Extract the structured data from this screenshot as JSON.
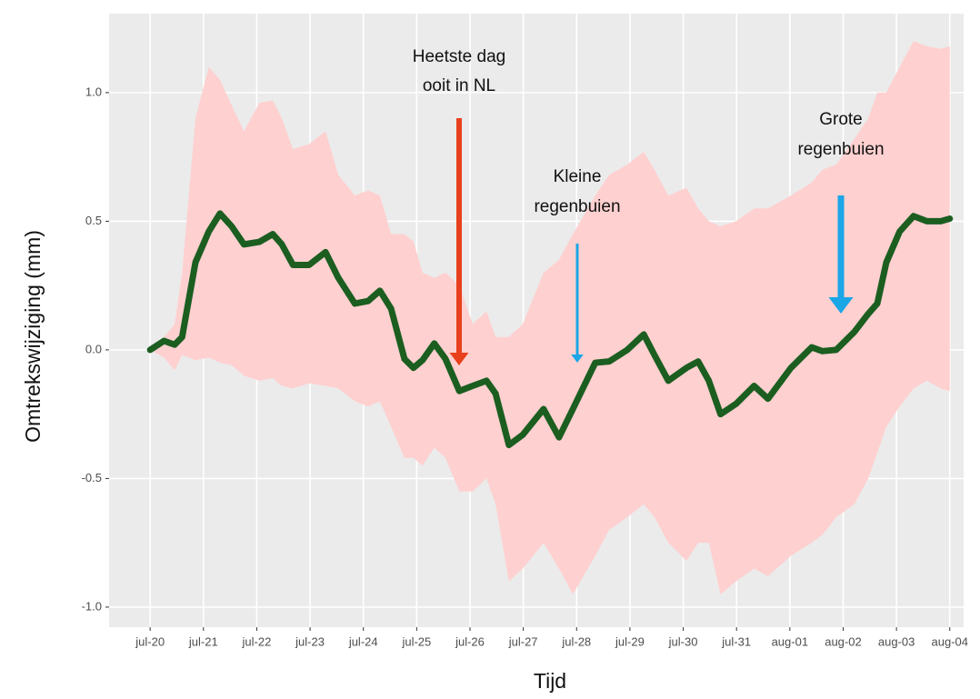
{
  "chart_data": {
    "type": "line",
    "x_label": "Tijd",
    "y_label": "Omtrekswijziging (mm)",
    "x": [
      0,
      0.26,
      0.46,
      0.6,
      0.85,
      1.1,
      1.31,
      1.53,
      1.76,
      2.05,
      2.3,
      2.47,
      2.68,
      2.98,
      3.29,
      3.53,
      3.84,
      4.09,
      4.31,
      4.52,
      4.77,
      4.94,
      5.11,
      5.33,
      5.54,
      5.8,
      6.05,
      6.31,
      6.48,
      6.73,
      6.99,
      7.38,
      7.67,
      7.93,
      8.35,
      8.61,
      8.95,
      9.26,
      9.46,
      9.72,
      10.06,
      10.28,
      10.48,
      10.7,
      10.99,
      11.33,
      11.59,
      12.02,
      12.41,
      12.61,
      12.87,
      13.21,
      13.47,
      13.64,
      13.81,
      14.06,
      14.32,
      14.57,
      14.83,
      15
    ],
    "series": [
      {
        "color": "#1b5e20",
        "values": [
          0,
          0.035,
          0.02,
          0.05,
          0.34,
          0.46,
          0.53,
          0.48,
          0.41,
          0.42,
          0.45,
          0.41,
          0.33,
          0.33,
          0.38,
          0.28,
          0.18,
          0.19,
          0.23,
          0.16,
          -0.035,
          -0.07,
          -0.04,
          0.025,
          -0.035,
          -0.16,
          -0.14,
          -0.12,
          -0.17,
          -0.37,
          -0.33,
          -0.23,
          -0.34,
          -0.23,
          -0.05,
          -0.045,
          0,
          0.06,
          -0.02,
          -0.12,
          -0.07,
          -0.045,
          -0.12,
          -0.25,
          -0.21,
          -0.14,
          -0.19,
          -0.07,
          0.01,
          -0.005,
          0,
          0.07,
          0.14,
          0.18,
          0.34,
          0.46,
          0.52,
          0.5,
          0.5,
          0.51
        ]
      }
    ],
    "band": {
      "color": "#ffd0d0",
      "upper": [
        0,
        0.05,
        0.1,
        0.3,
        0.9,
        1.1,
        1.05,
        0.95,
        0.85,
        0.96,
        0.97,
        0.9,
        0.78,
        0.8,
        0.85,
        0.68,
        0.6,
        0.62,
        0.6,
        0.45,
        0.45,
        0.42,
        0.3,
        0.28,
        0.3,
        0.25,
        0.1,
        0.15,
        0.05,
        0.05,
        0.1,
        0.3,
        0.35,
        0.45,
        0.6,
        0.68,
        0.72,
        0.77,
        0.7,
        0.6,
        0.63,
        0.55,
        0.5,
        0.48,
        0.5,
        0.55,
        0.55,
        0.6,
        0.65,
        0.7,
        0.72,
        0.82,
        0.9,
        1.0,
        1.0,
        1.1,
        1.2,
        1.18,
        1.17,
        1.18
      ],
      "lower": [
        0,
        -0.03,
        -0.08,
        -0.02,
        -0.04,
        -0.03,
        -0.05,
        -0.06,
        -0.1,
        -0.12,
        -0.11,
        -0.14,
        -0.15,
        -0.13,
        -0.14,
        -0.15,
        -0.2,
        -0.22,
        -0.2,
        -0.3,
        -0.42,
        -0.42,
        -0.45,
        -0.38,
        -0.42,
        -0.55,
        -0.55,
        -0.5,
        -0.6,
        -0.9,
        -0.85,
        -0.75,
        -0.85,
        -0.95,
        -0.8,
        -0.7,
        -0.65,
        -0.6,
        -0.65,
        -0.75,
        -0.82,
        -0.75,
        -0.75,
        -0.95,
        -0.9,
        -0.85,
        -0.88,
        -0.8,
        -0.75,
        -0.72,
        -0.65,
        -0.6,
        -0.5,
        -0.4,
        -0.3,
        -0.22,
        -0.15,
        -0.12,
        -0.15,
        -0.16
      ]
    },
    "xlim": [
      -0.77,
      15.26
    ],
    "ylim": [
      -1.078,
      1.307
    ],
    "xticks": [
      {
        "value": 0,
        "label": "jul-20"
      },
      {
        "value": 1,
        "label": "jul-21"
      },
      {
        "value": 2,
        "label": "jul-22"
      },
      {
        "value": 3,
        "label": "jul-23"
      },
      {
        "value": 4,
        "label": "jul-24"
      },
      {
        "value": 5,
        "label": "jul-25"
      },
      {
        "value": 6,
        "label": "jul-26"
      },
      {
        "value": 7,
        "label": "jul-27"
      },
      {
        "value": 8,
        "label": "jul-28"
      },
      {
        "value": 9,
        "label": "jul-29"
      },
      {
        "value": 10,
        "label": "jul-30"
      },
      {
        "value": 11,
        "label": "jul-31"
      },
      {
        "value": 12,
        "label": "aug-01"
      },
      {
        "value": 13,
        "label": "aug-02"
      },
      {
        "value": 14,
        "label": "aug-03"
      },
      {
        "value": 15,
        "label": "aug-04"
      }
    ],
    "yticks": [
      {
        "value": -1,
        "label": "-1.0"
      },
      -0.5,
      {
        "value": 0,
        "label": "0.0"
      },
      0.5,
      {
        "value": 1,
        "label": "1.0"
      }
    ],
    "grid": true,
    "annotations": [
      {
        "lines": [
          "Heetste dag",
          "ooit in NL"
        ],
        "color": "#e8401c"
      },
      {
        "lines": [
          "Kleine",
          "regenbuien"
        ],
        "color": "#1ba6e6"
      },
      {
        "lines": [
          "Grote",
          "regenbuien"
        ],
        "color": "#1ba6e6"
      }
    ]
  }
}
